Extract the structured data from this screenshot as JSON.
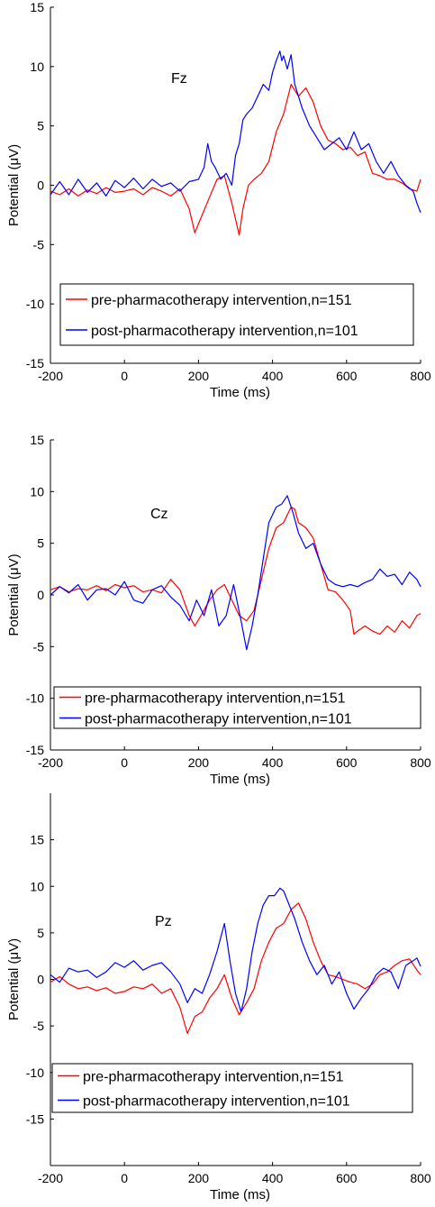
{
  "chart_data": [
    {
      "type": "line",
      "channel": "Fz",
      "xlabel": "Time (ms)",
      "ylabel": "Potential (μV)",
      "xlim": [
        -200,
        800
      ],
      "ylim": [
        -15,
        15
      ],
      "xticks": [
        -200,
        0,
        200,
        400,
        600,
        800
      ],
      "yticks": [
        -15,
        -10,
        -5,
        0,
        5,
        10,
        15
      ],
      "grid": false,
      "legend_position": "lower-left",
      "series": [
        {
          "name": "pre-pharmacotherapy intervention,n=151",
          "color": "#ff0000",
          "x": [
            -200,
            -175,
            -150,
            -125,
            -100,
            -75,
            -50,
            -25,
            0,
            25,
            50,
            75,
            100,
            125,
            150,
            175,
            190,
            210,
            230,
            250,
            270,
            290,
            310,
            320,
            335,
            350,
            370,
            390,
            410,
            430,
            450,
            460,
            470,
            490,
            510,
            530,
            550,
            570,
            590,
            610,
            630,
            650,
            670,
            690,
            710,
            730,
            750,
            770,
            790,
            800
          ],
          "y": [
            -0.5,
            -0.8,
            -0.3,
            -0.9,
            -0.4,
            -0.7,
            -0.2,
            -0.6,
            -0.5,
            -0.3,
            -0.8,
            -0.2,
            -0.5,
            -0.9,
            -0.3,
            -2.0,
            -4.0,
            -2.5,
            -1.0,
            0.5,
            0.8,
            -1.5,
            -4.2,
            -2.0,
            0.0,
            0.5,
            1.0,
            2.0,
            4.5,
            6.0,
            8.5,
            8.0,
            7.5,
            8.2,
            7.0,
            5.0,
            3.8,
            3.5,
            3.0,
            3.2,
            2.5,
            2.8,
            1.0,
            0.8,
            0.5,
            0.5,
            0.2,
            -0.3,
            -0.5,
            0.5
          ]
        },
        {
          "name": "post-pharmacotherapy intervention,n=101",
          "color": "#0000ff",
          "x": [
            -200,
            -175,
            -150,
            -125,
            -100,
            -75,
            -50,
            -25,
            0,
            25,
            50,
            75,
            100,
            125,
            150,
            175,
            200,
            215,
            225,
            235,
            245,
            260,
            275,
            290,
            300,
            310,
            320,
            330,
            345,
            360,
            375,
            390,
            400,
            410,
            420,
            425,
            430,
            440,
            450,
            460,
            480,
            500,
            520,
            540,
            560,
            580,
            600,
            620,
            640,
            660,
            680,
            700,
            720,
            740,
            760,
            780,
            790,
            800
          ],
          "y": [
            -0.8,
            0.3,
            -0.8,
            0.5,
            -0.6,
            0.2,
            -0.9,
            0.4,
            -0.2,
            0.6,
            -0.3,
            0.5,
            -0.1,
            0.2,
            -0.5,
            0.3,
            0.5,
            1.5,
            3.5,
            2.0,
            1.5,
            0.5,
            1.0,
            0.0,
            2.5,
            3.5,
            5.5,
            6.0,
            6.5,
            7.5,
            8.5,
            8.0,
            9.5,
            10.5,
            11.3,
            10.5,
            10.9,
            9.8,
            11.0,
            8.5,
            6.5,
            5.0,
            4.0,
            3.0,
            3.5,
            4.0,
            3.0,
            4.5,
            3.0,
            3.5,
            2.0,
            1.0,
            2.0,
            0.8,
            0.0,
            -0.5,
            -1.5,
            -2.3
          ]
        }
      ]
    },
    {
      "type": "line",
      "channel": "Cz",
      "xlabel": "Time (ms)",
      "ylabel": "Potential (μV)",
      "xlim": [
        -200,
        800
      ],
      "ylim": [
        -15,
        15
      ],
      "xticks": [
        -200,
        0,
        200,
        400,
        600,
        800
      ],
      "yticks": [
        -15,
        -10,
        -5,
        0,
        5,
        10,
        15
      ],
      "grid": false,
      "legend_position": "lower-left",
      "series": [
        {
          "name": "pre-pharmacotherapy intervention,n=151",
          "color": "#ff0000",
          "x": [
            -200,
            -175,
            -150,
            -125,
            -100,
            -75,
            -50,
            -25,
            0,
            25,
            50,
            75,
            100,
            125,
            150,
            175,
            190,
            210,
            230,
            250,
            270,
            290,
            310,
            330,
            350,
            370,
            390,
            410,
            430,
            450,
            460,
            470,
            490,
            510,
            530,
            550,
            570,
            590,
            610,
            620,
            630,
            650,
            670,
            690,
            710,
            730,
            750,
            770,
            790,
            800
          ],
          "y": [
            0.5,
            0.8,
            0.3,
            0.6,
            0.5,
            0.9,
            0.4,
            1.0,
            0.7,
            0.9,
            0.3,
            0.5,
            0.2,
            1.5,
            0.5,
            -2.0,
            -3.0,
            -1.8,
            -0.5,
            0.5,
            1.0,
            -0.5,
            -2.0,
            -2.5,
            -1.5,
            1.5,
            4.5,
            6.5,
            7.0,
            8.5,
            8.3,
            7.0,
            6.5,
            5.5,
            3.0,
            0.5,
            0.3,
            -0.5,
            -1.5,
            -3.8,
            -3.5,
            -3.0,
            -3.5,
            -3.8,
            -3.0,
            -3.6,
            -2.5,
            -3.2,
            -2.0,
            -1.8
          ]
        },
        {
          "name": "post-pharmacotherapy intervention,n=101",
          "color": "#0000ff",
          "x": [
            -200,
            -175,
            -150,
            -125,
            -100,
            -75,
            -50,
            -25,
            0,
            25,
            50,
            75,
            100,
            125,
            150,
            175,
            195,
            215,
            235,
            255,
            275,
            295,
            315,
            330,
            345,
            360,
            375,
            390,
            410,
            425,
            440,
            455,
            470,
            490,
            510,
            530,
            550,
            570,
            590,
            610,
            630,
            650,
            670,
            690,
            710,
            730,
            750,
            770,
            790,
            800
          ],
          "y": [
            0.0,
            0.8,
            0.2,
            1.0,
            -0.5,
            0.5,
            0.6,
            0.0,
            1.3,
            -0.5,
            -0.8,
            0.5,
            0.9,
            -0.2,
            -1.0,
            -2.5,
            -0.5,
            -2.0,
            0.5,
            -3.0,
            -2.0,
            1.0,
            -2.5,
            -5.3,
            -3.0,
            0.0,
            3.5,
            7.0,
            8.5,
            8.8,
            9.6,
            8.0,
            6.0,
            4.5,
            5.0,
            3.0,
            1.5,
            1.0,
            0.8,
            1.0,
            0.8,
            1.2,
            1.5,
            2.5,
            1.8,
            2.0,
            1.0,
            2.2,
            1.5,
            0.8
          ]
        }
      ]
    },
    {
      "type": "line",
      "channel": "Pz",
      "xlabel": "Time (ms)",
      "ylabel": "Potential (μV)",
      "xlim": [
        -200,
        800
      ],
      "ylim": [
        -20,
        20
      ],
      "xticks": [
        -200,
        0,
        200,
        400,
        600,
        800
      ],
      "yticks": [
        -15,
        -10,
        -5,
        0,
        5,
        10,
        15
      ],
      "grid": false,
      "legend_position": "lower-left",
      "series": [
        {
          "name": "pre-pharmacotherapy intervention,n=151",
          "color": "#ff0000",
          "x": [
            -200,
            -175,
            -150,
            -125,
            -100,
            -75,
            -50,
            -25,
            0,
            25,
            50,
            75,
            100,
            125,
            150,
            170,
            190,
            210,
            230,
            250,
            270,
            290,
            310,
            330,
            350,
            370,
            390,
            410,
            430,
            450,
            470,
            490,
            510,
            530,
            550,
            570,
            590,
            610,
            630,
            650,
            670,
            690,
            710,
            730,
            750,
            770,
            790,
            800
          ],
          "y": [
            -0.3,
            0.3,
            -0.5,
            -1.0,
            -0.8,
            -1.2,
            -0.9,
            -1.5,
            -1.3,
            -0.8,
            -1.0,
            -0.5,
            -1.5,
            -1.0,
            -3.0,
            -5.8,
            -4.0,
            -3.5,
            -2.0,
            -1.0,
            0.5,
            -2.0,
            -3.8,
            -2.5,
            -1.0,
            2.0,
            4.0,
            5.5,
            6.0,
            7.5,
            8.2,
            6.5,
            4.0,
            2.0,
            0.5,
            0.3,
            0.0,
            -0.3,
            -0.5,
            -1.0,
            -0.5,
            0.5,
            0.8,
            1.5,
            2.0,
            2.2,
            1.0,
            0.5
          ]
        },
        {
          "name": "post-pharmacotherapy intervention,n=101",
          "color": "#0000ff",
          "x": [
            -200,
            -175,
            -150,
            -125,
            -100,
            -75,
            -50,
            -25,
            0,
            25,
            50,
            75,
            100,
            125,
            150,
            170,
            190,
            210,
            230,
            250,
            270,
            285,
            300,
            315,
            330,
            345,
            360,
            375,
            390,
            405,
            420,
            430,
            445,
            460,
            480,
            500,
            520,
            540,
            560,
            580,
            600,
            620,
            640,
            660,
            680,
            700,
            720,
            740,
            760,
            780,
            790,
            800
          ],
          "y": [
            0.5,
            -0.3,
            1.2,
            0.8,
            1.0,
            0.2,
            0.8,
            1.8,
            1.3,
            2.0,
            1.0,
            1.5,
            1.8,
            0.8,
            -0.5,
            -2.5,
            -1.0,
            -1.5,
            0.5,
            3.0,
            6.0,
            2.0,
            -1.5,
            -3.5,
            -1.0,
            3.0,
            6.0,
            8.0,
            9.0,
            9.0,
            9.8,
            9.5,
            8.0,
            6.5,
            4.0,
            2.0,
            0.5,
            1.5,
            -0.5,
            0.8,
            -1.5,
            -3.2,
            -2.0,
            -1.0,
            0.5,
            1.2,
            0.8,
            -1.0,
            1.5,
            2.0,
            2.3,
            1.4
          ]
        }
      ]
    }
  ]
}
